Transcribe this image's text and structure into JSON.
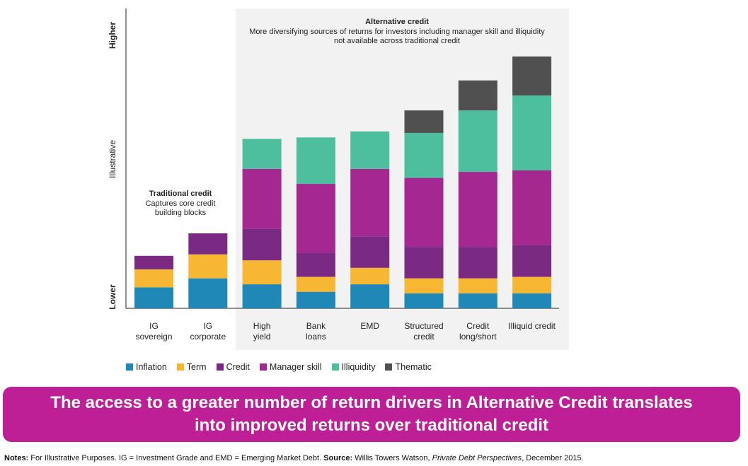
{
  "chart_data": {
    "type": "bar",
    "stacked": true,
    "categories": [
      [
        "IG",
        "sovereign"
      ],
      [
        "IG",
        "corporate"
      ],
      [
        "High",
        "yield"
      ],
      [
        "Bank",
        "loans"
      ],
      [
        "EMD"
      ],
      [
        "Structured",
        "credit"
      ],
      [
        "Credit",
        "long/short"
      ],
      [
        "Illiquid credit"
      ]
    ],
    "ylabel": "Illustrative",
    "y_top_label": "Higher",
    "y_bottom_label": "Lower",
    "ylim": [
      0,
      100
    ],
    "grid": false,
    "legend_position": "bottom",
    "series": [
      {
        "name": "Inflation",
        "color": "#1f88b7",
        "values": [
          7,
          10,
          8,
          5.5,
          8,
          5,
          5,
          5
        ]
      },
      {
        "name": "Term",
        "color": "#f7b733",
        "values": [
          6,
          8,
          8,
          5,
          5.5,
          5,
          5,
          5.5
        ]
      },
      {
        "name": "Credit",
        "color": "#7b2a83",
        "values": [
          4.5,
          7,
          10.5,
          8,
          10.5,
          10.5,
          10.5,
          10.5
        ]
      },
      {
        "name": "Manager skill",
        "color": "#a4288f",
        "values": [
          0,
          0,
          20,
          23,
          22.5,
          23,
          25,
          25
        ]
      },
      {
        "name": "Illiquidity",
        "color": "#4dbf9f",
        "values": [
          0,
          0,
          10,
          15.5,
          12.5,
          15,
          20.5,
          25
        ]
      },
      {
        "name": "Thematic",
        "color": "#505050",
        "values": [
          0,
          0,
          0,
          0,
          0,
          7.5,
          10,
          13
        ]
      }
    ],
    "annotations": {
      "traditional": {
        "title": "Traditional credit",
        "lines": [
          "Captures core credit",
          "building blocks"
        ]
      },
      "alternative": {
        "title": "Alternative credit",
        "lines": [
          "More diversifying sources of returns for investors including manager skill and illiquidity",
          "not available across traditional credit"
        ]
      }
    }
  },
  "banner": {
    "line1": "The access to a greater number of return drivers in Alternative Credit translates",
    "line2": "into improved returns over traditional credit"
  },
  "notes": {
    "label": "Notes:",
    "text1": " For Illustrative Purposes. IG = Investment Grade and EMD = Emerging Market Debt. ",
    "source_label": "Source:",
    "text2": " Willis Towers Watson, ",
    "publication": "Private Debt Perspectives",
    "text3": ", December 2015."
  }
}
